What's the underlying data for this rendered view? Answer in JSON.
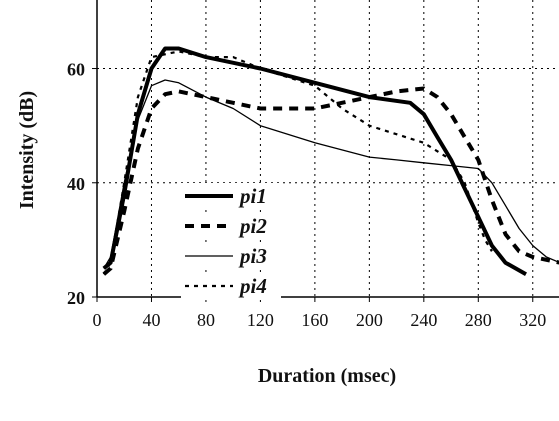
{
  "chart_data": {
    "type": "line",
    "xlabel": "Duration (msec)",
    "ylabel": "Intensity (dB)",
    "xlim": [
      0,
      340
    ],
    "ylim": [
      20,
      72
    ],
    "xticks": [
      0,
      40,
      80,
      120,
      160,
      200,
      240,
      280,
      320
    ],
    "yticks": [
      20,
      40,
      60
    ],
    "grid": true,
    "legend": "lower left",
    "series": [
      {
        "name": "pi1",
        "color": "#000000",
        "width": 4,
        "dash": "none",
        "x": [
          5,
          10,
          20,
          30,
          40,
          50,
          60,
          80,
          120,
          160,
          200,
          230,
          240,
          250,
          260,
          270,
          280,
          290,
          300,
          315
        ],
        "values": [
          25,
          26,
          38,
          52,
          60,
          63.5,
          63.5,
          62,
          60,
          57.5,
          55,
          54,
          52,
          48,
          44,
          39,
          34,
          29,
          26,
          24
        ]
      },
      {
        "name": "pi2",
        "color": "#000000",
        "width": 4,
        "dash": "9 7",
        "x": [
          5,
          10,
          20,
          30,
          40,
          50,
          60,
          80,
          100,
          120,
          160,
          200,
          220,
          240,
          250,
          260,
          270,
          280,
          290,
          300,
          310,
          320,
          340
        ],
        "values": [
          24,
          25,
          35,
          46,
          53,
          55.5,
          56,
          55,
          54,
          53,
          53,
          55,
          56,
          56.5,
          55,
          52,
          48,
          44,
          37,
          31,
          28,
          27,
          26
        ]
      },
      {
        "name": "pi3",
        "color": "#000000",
        "width": 1.3,
        "dash": "none",
        "x": [
          5,
          10,
          20,
          30,
          40,
          50,
          60,
          80,
          100,
          120,
          160,
          200,
          220,
          240,
          260,
          280,
          290,
          300,
          310,
          320,
          330,
          340
        ],
        "values": [
          25,
          27,
          40,
          51,
          57,
          58,
          57.5,
          55,
          53,
          50,
          47,
          44.5,
          44,
          43.5,
          43,
          42.5,
          40,
          36,
          32,
          29,
          27,
          26
        ]
      },
      {
        "name": "pi4",
        "color": "#000000",
        "width": 2.2,
        "dash": "4 5",
        "x": [
          5,
          10,
          20,
          30,
          40,
          60,
          80,
          100,
          120,
          160,
          180,
          200,
          240,
          260,
          270,
          280,
          285,
          290
        ],
        "values": [
          24,
          26,
          40,
          55,
          62,
          63,
          62,
          62,
          60,
          57,
          53,
          50,
          47,
          44,
          40,
          33,
          30,
          28
        ]
      }
    ]
  }
}
